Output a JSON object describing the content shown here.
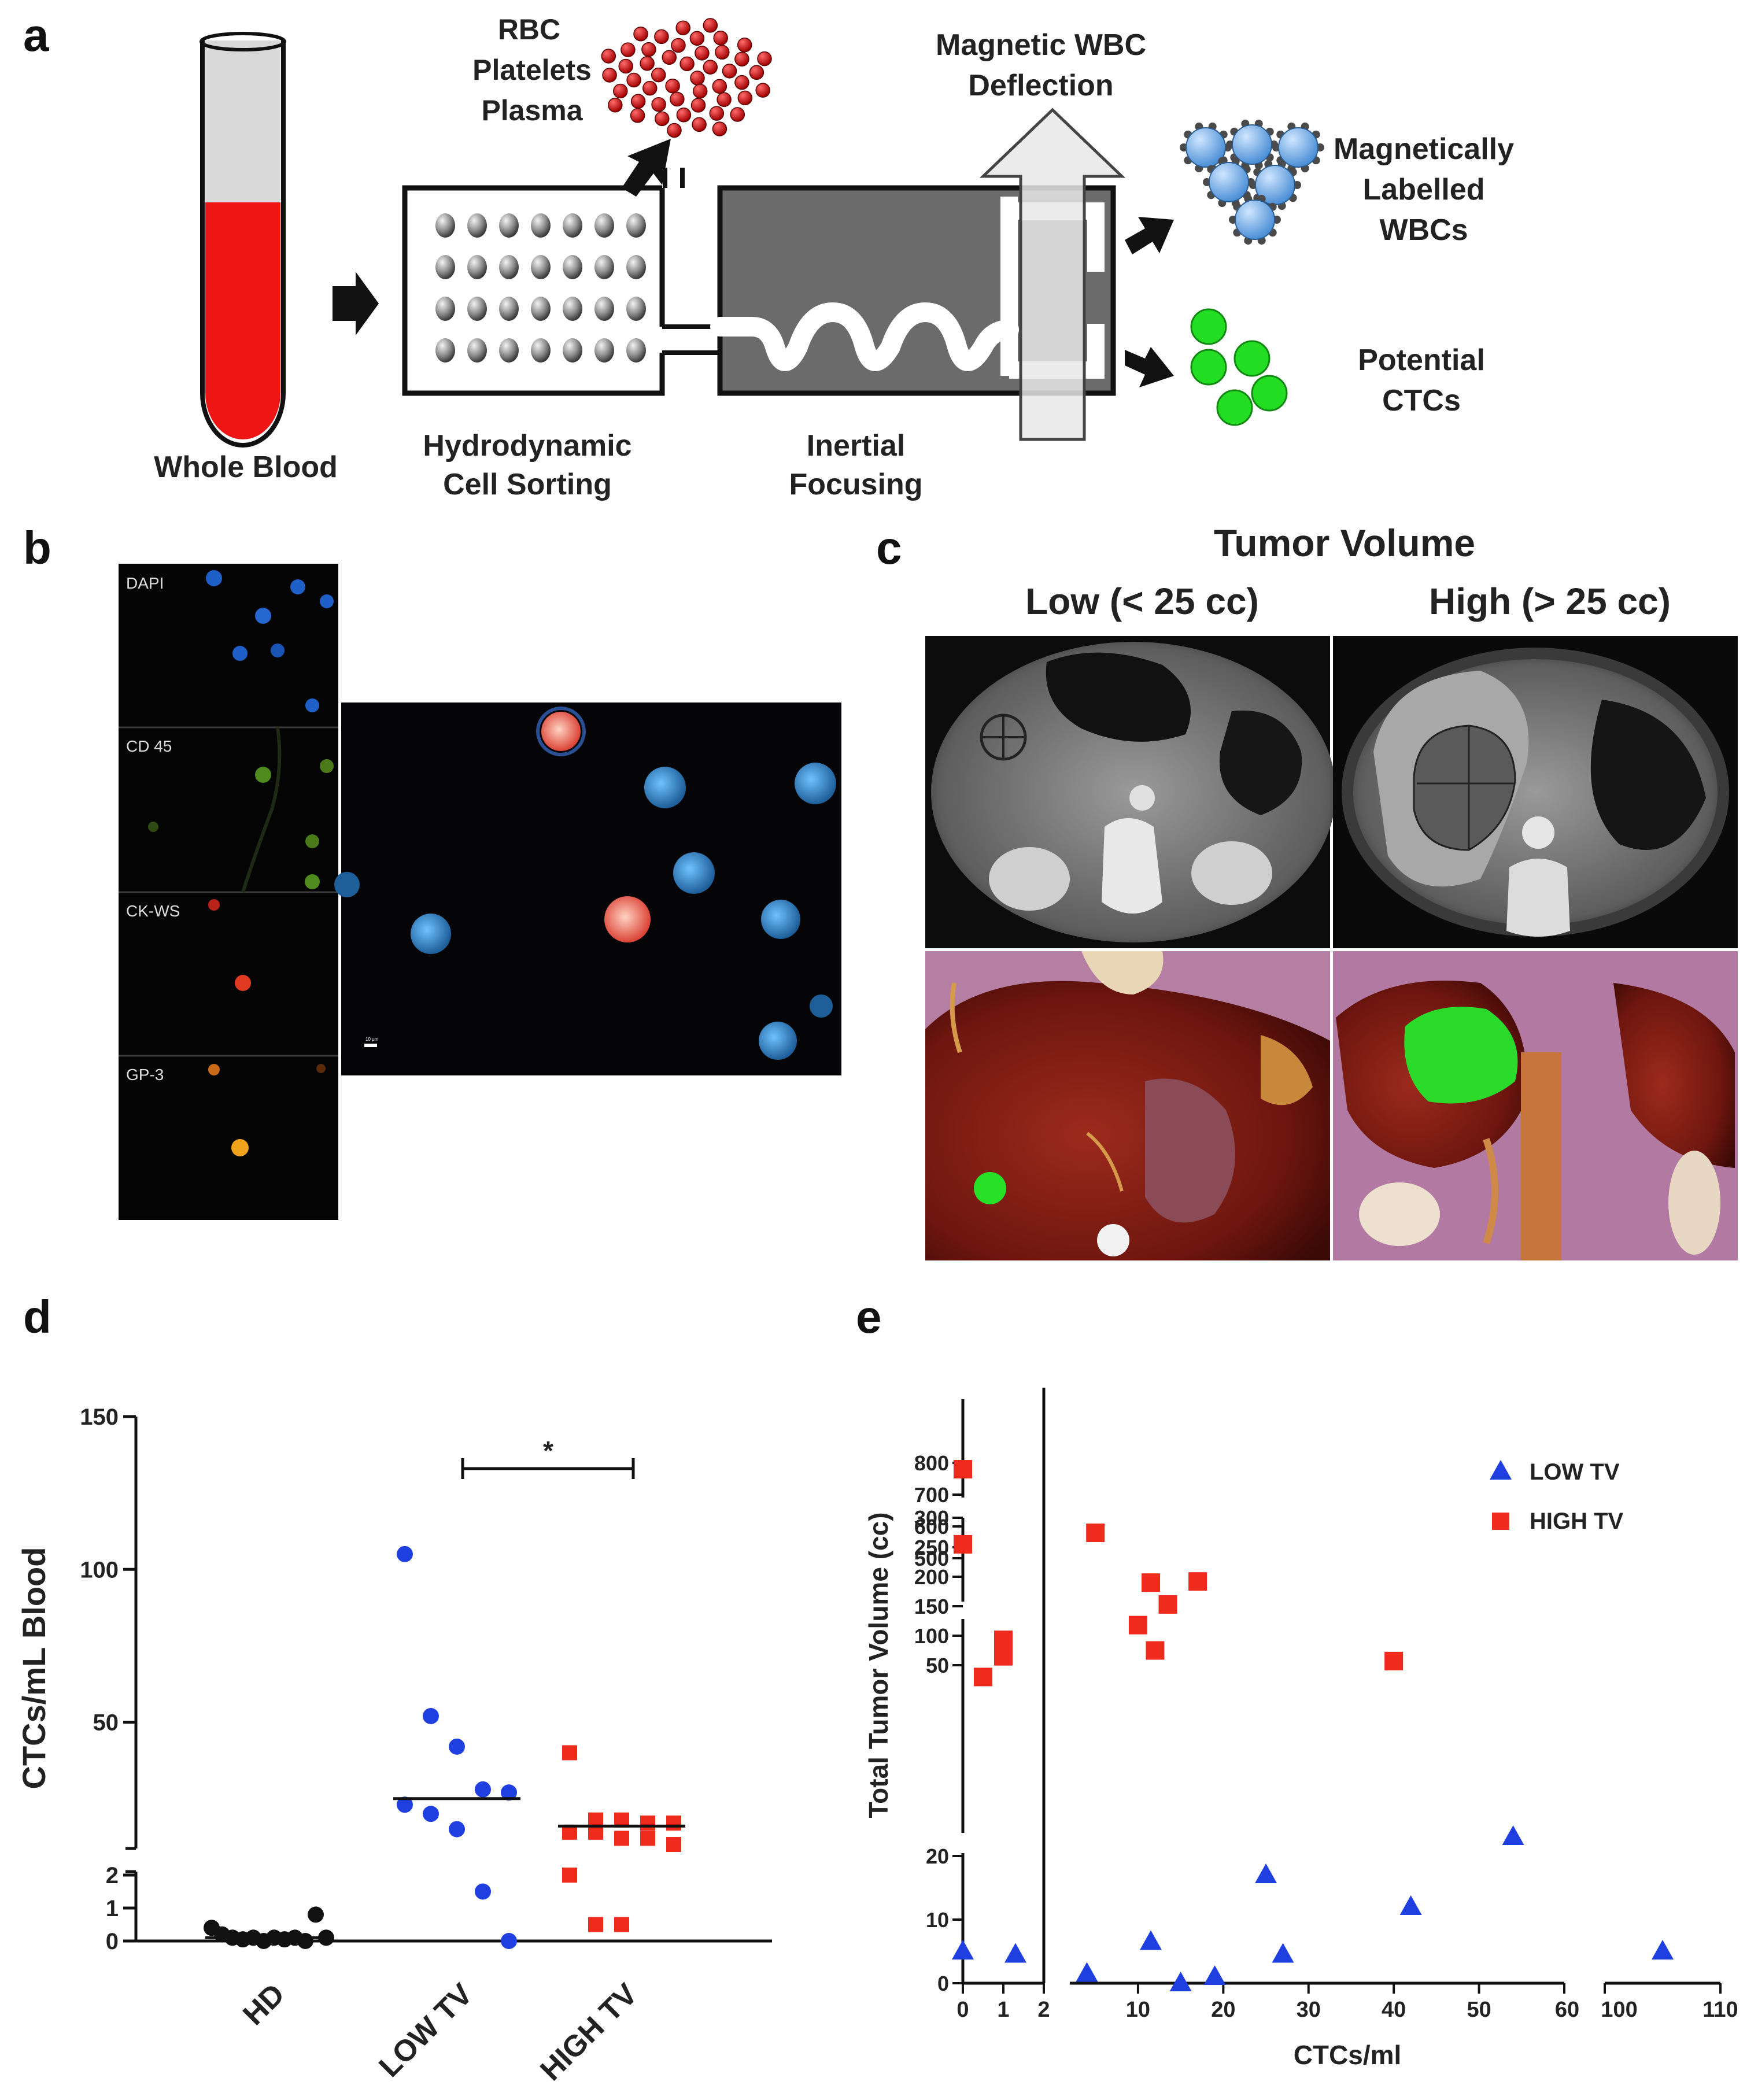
{
  "panel_a": {
    "letter": "a",
    "whole_blood": "Whole Blood",
    "rbc_labels": [
      "RBC",
      "Platelets",
      "Plasma"
    ],
    "hydro_label": [
      "Hydrodynamic",
      "Cell Sorting"
    ],
    "inertial_label": [
      "Inertial",
      "Focusing"
    ],
    "magnetic_label": [
      "Magnetic WBC",
      "Deflection"
    ],
    "wbc_label": [
      "Magnetically",
      "Labelled",
      "WBCs"
    ],
    "ctc_label": [
      "Potential",
      "CTCs"
    ]
  },
  "panel_b": {
    "letter": "b",
    "channels": [
      "DAPI",
      "CD 45",
      "CK-WS",
      "GP-3"
    ],
    "scale_label": "10 μm"
  },
  "panel_c": {
    "letter": "c",
    "title": "Tumor Volume",
    "low": "Low (< 25 cc)",
    "high": "High (> 25 cc)"
  },
  "colors": {
    "blue": "#1f3fe0",
    "red": "#ee2b1c",
    "black": "#111111",
    "green": "#2ddc2d"
  },
  "chart_data": [
    {
      "type": "scatter",
      "panel": "d",
      "title": "",
      "ylabel": "CTCs/mL Blood",
      "xlabel": "",
      "categories": [
        "HD",
        "LOW TV",
        "HIGH TV"
      ],
      "y_ticks_upper": [
        "150",
        "100",
        "50"
      ],
      "y_ticks_lower": [
        "2",
        "1",
        "0"
      ],
      "ylim_upper": [
        10,
        150
      ],
      "ylim_lower": [
        0,
        2
      ],
      "significance": "*",
      "series": [
        {
          "name": "HD",
          "color": "#111111",
          "marker": "circle",
          "median": 0.1,
          "values": [
            0.4,
            0.2,
            0.1,
            0.05,
            0.1,
            0.0,
            0.1,
            0.05,
            0.1,
            0.0,
            0.8,
            0.1
          ]
        },
        {
          "name": "LOW TV",
          "color": "#1f3fe0",
          "marker": "circle",
          "median": 25,
          "values": [
            105,
            52,
            42,
            28,
            27,
            23,
            20,
            15,
            1.5,
            0
          ]
        },
        {
          "name": "HIGH TV",
          "color": "#ee2b1c",
          "marker": "square",
          "median": 16,
          "values": [
            40,
            18,
            18,
            17,
            17,
            14,
            14,
            12,
            12,
            10,
            2,
            0.5,
            0.5
          ]
        }
      ]
    },
    {
      "type": "scatter",
      "panel": "e",
      "title": "",
      "xlabel": "CTCs/ml",
      "ylabel": "Total Tumor Volume (cc)",
      "x_ticks": [
        "0",
        "1",
        "2",
        "10",
        "20",
        "30",
        "40",
        "50",
        "60",
        "100",
        "110"
      ],
      "y_ticks": [
        "800",
        "700",
        "600",
        "500",
        "300",
        "250",
        "200",
        "150",
        "100",
        "50",
        "20",
        "10",
        "0"
      ],
      "legend": [
        {
          "label": "LOW TV",
          "color": "#1f3fe0",
          "marker": "triangle"
        },
        {
          "label": "HIGH TV",
          "color": "#ee2b1c",
          "marker": "square"
        }
      ],
      "series": [
        {
          "name": "LOW TV",
          "color": "#1f3fe0",
          "marker": "triangle",
          "x": [
            0,
            1.3,
            4,
            11.5,
            15,
            19,
            25,
            27,
            42,
            54,
            105
          ],
          "y": [
            5,
            4.5,
            1.5,
            6.5,
            0,
            1,
            17,
            4.5,
            12,
            23,
            5
          ]
        },
        {
          "name": "HIGH TV",
          "color": "#ee2b1c",
          "marker": "square",
          "x": [
            0,
            0,
            0.5,
            1,
            1,
            5,
            10,
            11.5,
            12,
            13.5,
            17,
            40
          ],
          "y": [
            780,
            255,
            30,
            93,
            65,
            580,
            118,
            190,
            75,
            153,
            192,
            57
          ]
        }
      ]
    }
  ]
}
